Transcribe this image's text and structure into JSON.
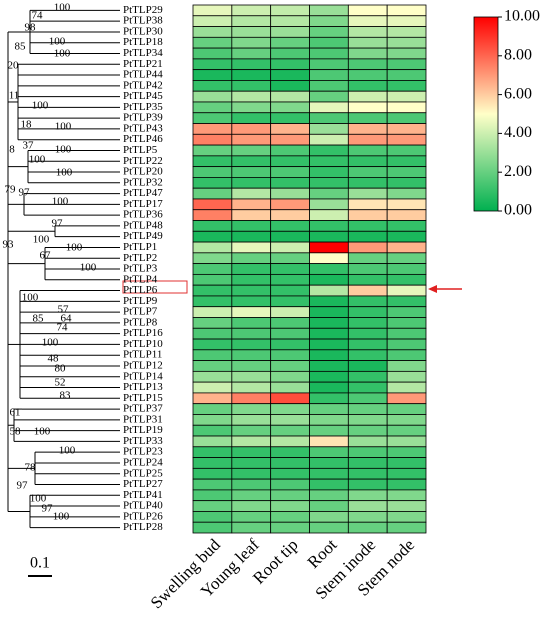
{
  "chart_data": {
    "type": "heatmap",
    "categories": [
      "Swelling bud",
      "Young leaf",
      "Root tip",
      "Root",
      "Stem inode",
      "Stem node"
    ],
    "rows": [
      "PtTLP29",
      "PtTLP38",
      "PtTLP30",
      "PtTLP18",
      "PtTLP34",
      "PtTLP21",
      "PtTLP44",
      "PtTLP42",
      "PtTLP45",
      "PtTLP35",
      "PtTLP39",
      "PtTLP43",
      "PtTLP46",
      "PtTLP5",
      "PtTLP22",
      "PtTLP20",
      "PtTLP32",
      "PtTLP47",
      "PtTLP17",
      "PtTLP36",
      "PtTLP48",
      "PtTLP49",
      "PtTLP1",
      "PtTLP2",
      "PtTLP3",
      "PtTLP4",
      "PtTLP6",
      "PtTLP9",
      "PtTLP7",
      "PtTLP8",
      "PtTLP16",
      "PtTLP10",
      "PtTLP11",
      "PtTLP12",
      "PtTLP14",
      "PtTLP13",
      "PtTLP15",
      "PtTLP37",
      "PtTLP31",
      "PtTLP19",
      "PtTLP33",
      "PtTLP23",
      "PtTLP24",
      "PtTLP25",
      "PtTLP27",
      "PtTLP41",
      "PtTLP40",
      "PtTLP26",
      "PtTLP28"
    ],
    "values": [
      [
        4.5,
        4,
        3.8,
        3,
        5,
        5
      ],
      [
        4,
        3.5,
        3.5,
        2.5,
        4.5,
        4.5
      ],
      [
        3,
        3,
        3,
        2,
        3.5,
        3.5
      ],
      [
        2,
        2.5,
        2,
        1.5,
        3,
        3
      ],
      [
        1.5,
        2,
        1.5,
        1.5,
        2.5,
        2.5
      ],
      [
        1,
        1,
        1,
        1.5,
        1.5,
        1.5
      ],
      [
        0.5,
        0.5,
        0.5,
        1.5,
        1.5,
        1.5
      ],
      [
        1,
        1,
        0.5,
        1.5,
        1,
        1
      ],
      [
        3,
        3.5,
        3.5,
        2,
        4,
        4
      ],
      [
        2,
        2.5,
        2.5,
        4.5,
        5,
        5
      ],
      [
        1.5,
        1,
        1,
        1.5,
        1.5,
        1.5
      ],
      [
        7,
        7,
        6.5,
        3,
        6.5,
        6.5
      ],
      [
        7.5,
        7,
        7,
        4,
        7,
        7
      ],
      [
        2,
        2,
        1.5,
        1,
        1.5,
        1.5
      ],
      [
        1,
        1,
        1,
        1,
        1,
        1
      ],
      [
        1.5,
        1.5,
        1.5,
        1,
        1.5,
        1.5
      ],
      [
        1,
        1,
        1,
        1,
        1,
        1
      ],
      [
        2,
        3.5,
        3,
        2,
        3,
        2.5
      ],
      [
        8,
        6.5,
        7,
        3,
        5.5,
        5.5
      ],
      [
        7.5,
        6,
        6,
        4,
        6,
        6
      ],
      [
        1,
        1,
        1,
        1,
        1,
        1
      ],
      [
        0.5,
        0.5,
        0.5,
        0.5,
        0.5,
        0.5
      ],
      [
        3.5,
        4.5,
        4,
        10,
        7,
        6.5
      ],
      [
        2.5,
        2,
        2,
        5,
        2,
        2
      ],
      [
        1.5,
        1,
        1,
        1,
        1.5,
        1.5
      ],
      [
        1.5,
        1,
        1,
        0.5,
        1,
        1
      ],
      [
        1,
        1,
        1,
        3.5,
        6,
        4.5
      ],
      [
        1,
        1,
        1,
        0.5,
        1,
        1
      ],
      [
        4,
        4.5,
        4,
        0.5,
        1,
        1.5
      ],
      [
        2,
        1.5,
        1.5,
        0.5,
        1,
        1.5
      ],
      [
        1.5,
        1.5,
        1.5,
        0.5,
        1,
        1.5
      ],
      [
        1,
        1,
        1,
        0.5,
        1,
        1.5
      ],
      [
        1.5,
        1.5,
        1.5,
        0.5,
        1,
        1.5
      ],
      [
        2,
        2,
        2,
        0.5,
        0.5,
        2.5
      ],
      [
        3,
        3,
        2.5,
        0.5,
        1,
        3
      ],
      [
        4,
        3.5,
        3,
        0.5,
        1,
        3.5
      ],
      [
        6.5,
        7.5,
        8.5,
        1,
        1.5,
        7
      ],
      [
        2,
        2.5,
        2.5,
        2,
        2,
        2
      ],
      [
        2.5,
        3,
        3,
        2.5,
        2.5,
        2.5
      ],
      [
        1.5,
        2,
        2,
        2,
        2,
        2
      ],
      [
        3,
        3.5,
        3.5,
        5.5,
        3,
        3
      ],
      [
        1,
        1,
        1,
        1.5,
        1.5,
        1.5
      ],
      [
        1,
        1,
        1,
        1,
        1,
        1
      ],
      [
        1,
        1,
        1,
        1,
        1,
        1
      ],
      [
        1.5,
        1.5,
        1.5,
        1,
        1,
        1
      ],
      [
        1.5,
        2,
        2,
        2,
        2.5,
        2.5
      ],
      [
        2,
        2.5,
        2.5,
        2,
        3,
        3
      ],
      [
        1.5,
        2,
        2,
        2.5,
        2.5,
        2.5
      ],
      [
        1.5,
        2,
        2,
        2,
        2,
        2
      ]
    ],
    "colormap": [
      "#00b050",
      "#ffffc8",
      "#ff0000"
    ],
    "zlim": [
      0,
      10
    ],
    "zticks": [
      {
        "value": 0,
        "label": "0.00"
      },
      {
        "value": 2,
        "label": "2.00"
      },
      {
        "value": 4,
        "label": "4.00"
      },
      {
        "value": 6,
        "label": "6.00"
      },
      {
        "value": 8,
        "label": "8.00"
      },
      {
        "value": 10,
        "label": "10.00"
      }
    ],
    "bootstrap": [
      "74",
      "100",
      "98",
      "100",
      "85",
      "100",
      "20",
      "11",
      "100",
      "18",
      "100",
      "37",
      "8",
      "100",
      "100",
      "100",
      "79",
      "97",
      "100",
      "97",
      "100",
      "100",
      "67",
      "100",
      "93",
      "100",
      "57",
      "85",
      "64",
      "74",
      "100",
      "48",
      "80",
      "52",
      "83",
      "61",
      "58",
      "100",
      "100",
      "78",
      "97",
      "100",
      "97",
      "100"
    ],
    "scale_bar": "0.1"
  }
}
